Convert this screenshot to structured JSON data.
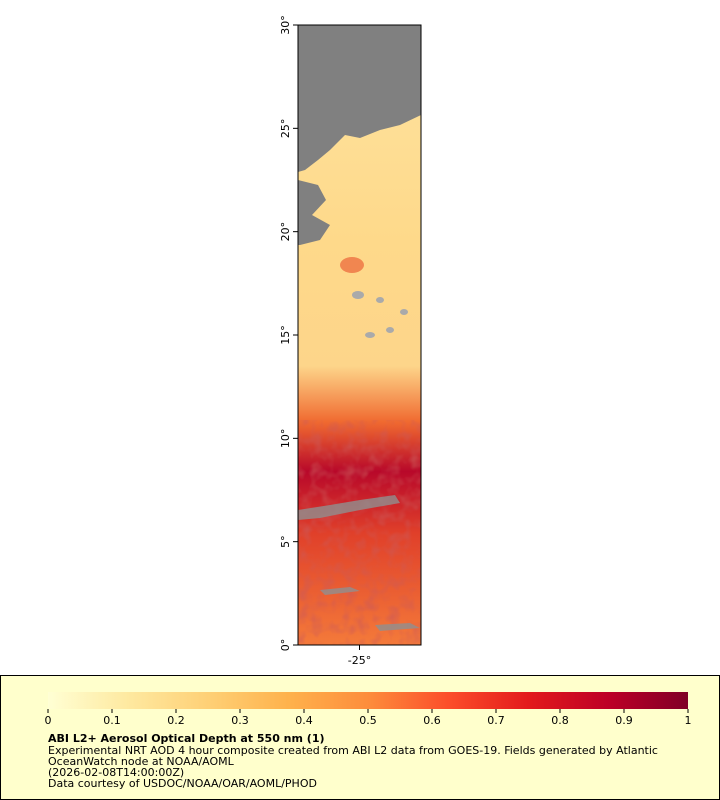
{
  "map": {
    "latlim": [
      0,
      30
    ],
    "lonlim": [
      -26.2,
      -23.8
    ],
    "lat_ticks": [
      {
        "value": 0,
        "label": "0°"
      },
      {
        "value": 5,
        "label": "5°"
      },
      {
        "value": 10,
        "label": "10°"
      },
      {
        "value": 15,
        "label": "15°"
      },
      {
        "value": 20,
        "label": "20°"
      },
      {
        "value": 25,
        "label": "25°"
      },
      {
        "value": 30,
        "label": "30°"
      }
    ],
    "lon_ticks": [
      {
        "value": -25,
        "label": "-25°"
      }
    ]
  },
  "colorbar": {
    "lim": [
      0,
      1
    ],
    "ticks": [
      0,
      0.1,
      0.2,
      0.3,
      0.4,
      0.5,
      0.6,
      0.7,
      0.8,
      0.9,
      1
    ],
    "colors": [
      "#ffffd4",
      "#fee9a0",
      "#fed076",
      "#feb24c",
      "#fd8d3c",
      "#fc4e2a",
      "#e31a1c",
      "#bd0026",
      "#800026"
    ]
  },
  "caption": {
    "title": "ABI L2+ Aerosol Optical Depth at 550 nm (1)",
    "lines": [
      "Experimental NRT AOD 4 hour composite created from ABI L2 data from GOES-19. Fields generated by Atlantic",
      "OceanWatch node at NOAA/AOML",
      "(2026-02-08T14:00:00Z)",
      "Data courtesy of USDOC/NOAA/OAR/AOML/PHOD"
    ]
  }
}
